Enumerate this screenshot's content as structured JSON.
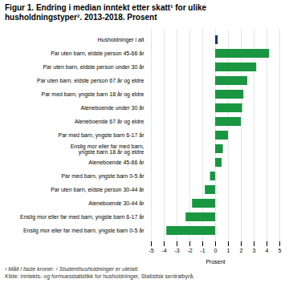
{
  "chart_data": {
    "type": "bar",
    "orientation": "horizontal",
    "title": "Figur 1. Endring i median inntekt etter skatt¹ for ulike\nhusholdningstyper². 2013-2018. Prosent",
    "categories": [
      "Husholdninger i alt",
      "Par uten barn, eldste person 45-66 år",
      "Par uten barn, eldste person under 30 år",
      "Par uten barn, eldste person 67 år og eldre",
      "Par med barn, yngste barn 18 år og eldre",
      "Aleneboende under 30 år",
      "Aleneboende 67 år og eldre",
      "Par med barn, yngste barn 6-17 år",
      "Enslig mor eller far med barn,\nyngste barn 18 år og eldre",
      "Aleneboende 45-66 år",
      "Par med barn, yngste barn 0-5 år",
      "Par uten barn, eldste person 30-44 år",
      "Aleneboende 30-44 år",
      "Enslig mor eller far med barn, yngste barn 6-17 år",
      "Enslig mor eller far med barn, yngste barn 0-5 år"
    ],
    "values": [
      0.2,
      4.2,
      3.2,
      2.5,
      2.2,
      2.1,
      2.0,
      1.0,
      0.6,
      0.5,
      -0.4,
      -0.8,
      -1.8,
      -2.3,
      -3.8
    ],
    "colors": [
      "#1a3a6b",
      "#1a9641",
      "#1a9641",
      "#1a9641",
      "#1a9641",
      "#1a9641",
      "#1a9641",
      "#1a9641",
      "#1a9641",
      "#1a9641",
      "#1a9641",
      "#1a9641",
      "#1a9641",
      "#1a9641",
      "#1a9641"
    ],
    "xlabel": "Prosent",
    "xlim": [
      -5,
      5
    ],
    "xticks": [
      -5,
      -4,
      -3,
      -2,
      -1,
      0,
      1,
      2,
      3,
      4,
      5
    ],
    "grid": true,
    "annotations": [
      "¹ Målt i faste kroner. ² Studenthusholdninger er utelatt.",
      "Kilde: Inntekts- og formuesstatistikk for husholdninger, Statistisk sentralbyrå."
    ]
  }
}
